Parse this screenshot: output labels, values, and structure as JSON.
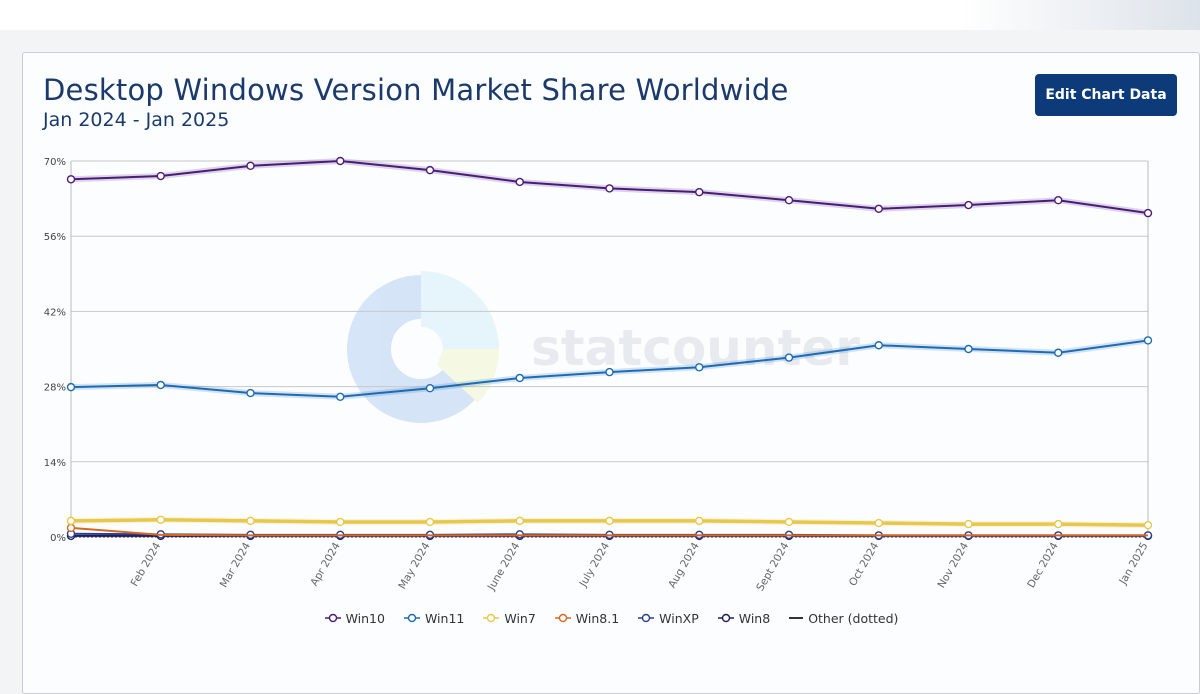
{
  "header": {
    "title": "Desktop Windows Version Market Share Worldwide",
    "subtitle": "Jan 2024 - Jan 2025",
    "edit_button": "Edit Chart Data"
  },
  "watermark": "statcounter",
  "chart_data": {
    "type": "line",
    "title": "Desktop Windows Version Market Share Worldwide",
    "subtitle": "Jan 2024 - Jan 2025",
    "xlabel": "",
    "ylabel": "",
    "ylim": [
      0,
      70
    ],
    "yticks": [
      "0%",
      "14%",
      "28%",
      "42%",
      "56%",
      "70%"
    ],
    "ytick_values": [
      0,
      14,
      28,
      42,
      56,
      70
    ],
    "grid": true,
    "legend_position": "bottom",
    "categories": [
      "Jan 2024",
      "Feb 2024",
      "Mar 2024",
      "Apr 2024",
      "May 2024",
      "June 2024",
      "July 2024",
      "Aug 2024",
      "Sept 2024",
      "Oct 2024",
      "Nov 2024",
      "Dec 2024",
      "Jan 2025"
    ],
    "series": [
      {
        "name": "Win10",
        "color": "#4b1a7a",
        "values": [
          66.6,
          67.2,
          69.1,
          70.0,
          68.3,
          66.1,
          64.9,
          64.2,
          62.7,
          61.1,
          61.8,
          62.7,
          60.3
        ]
      },
      {
        "name": "Win11",
        "color": "#1c6cb5",
        "values": [
          27.9,
          28.3,
          26.8,
          26.1,
          27.7,
          29.6,
          30.7,
          31.6,
          33.4,
          35.7,
          35.0,
          34.3,
          36.6
        ]
      },
      {
        "name": "Win7",
        "color": "#e8c84a",
        "values": [
          3.0,
          3.2,
          3.0,
          2.8,
          2.8,
          3.0,
          3.0,
          3.0,
          2.8,
          2.6,
          2.4,
          2.4,
          2.2
        ]
      },
      {
        "name": "Win8.1",
        "color": "#d9661f",
        "values": [
          1.7,
          0.4,
          0.3,
          0.3,
          0.3,
          0.3,
          0.3,
          0.3,
          0.3,
          0.3,
          0.3,
          0.3,
          0.3
        ]
      },
      {
        "name": "WinXP",
        "color": "#2a3f8f",
        "values": [
          0.6,
          0.5,
          0.4,
          0.4,
          0.4,
          0.5,
          0.4,
          0.4,
          0.4,
          0.3,
          0.3,
          0.3,
          0.3
        ]
      },
      {
        "name": "Win8",
        "color": "#1f1f5e",
        "values": [
          0.2,
          0.2,
          0.2,
          0.2,
          0.2,
          0.2,
          0.2,
          0.2,
          0.2,
          0.2,
          0.2,
          0.2,
          0.2
        ]
      },
      {
        "name": "Other (dotted)",
        "color": "#333333",
        "dotted": true,
        "values": [
          0.1,
          0.1,
          0.1,
          0.1,
          0.1,
          0.1,
          0.1,
          0.1,
          0.1,
          0.1,
          0.1,
          0.1,
          0.1
        ]
      }
    ]
  }
}
